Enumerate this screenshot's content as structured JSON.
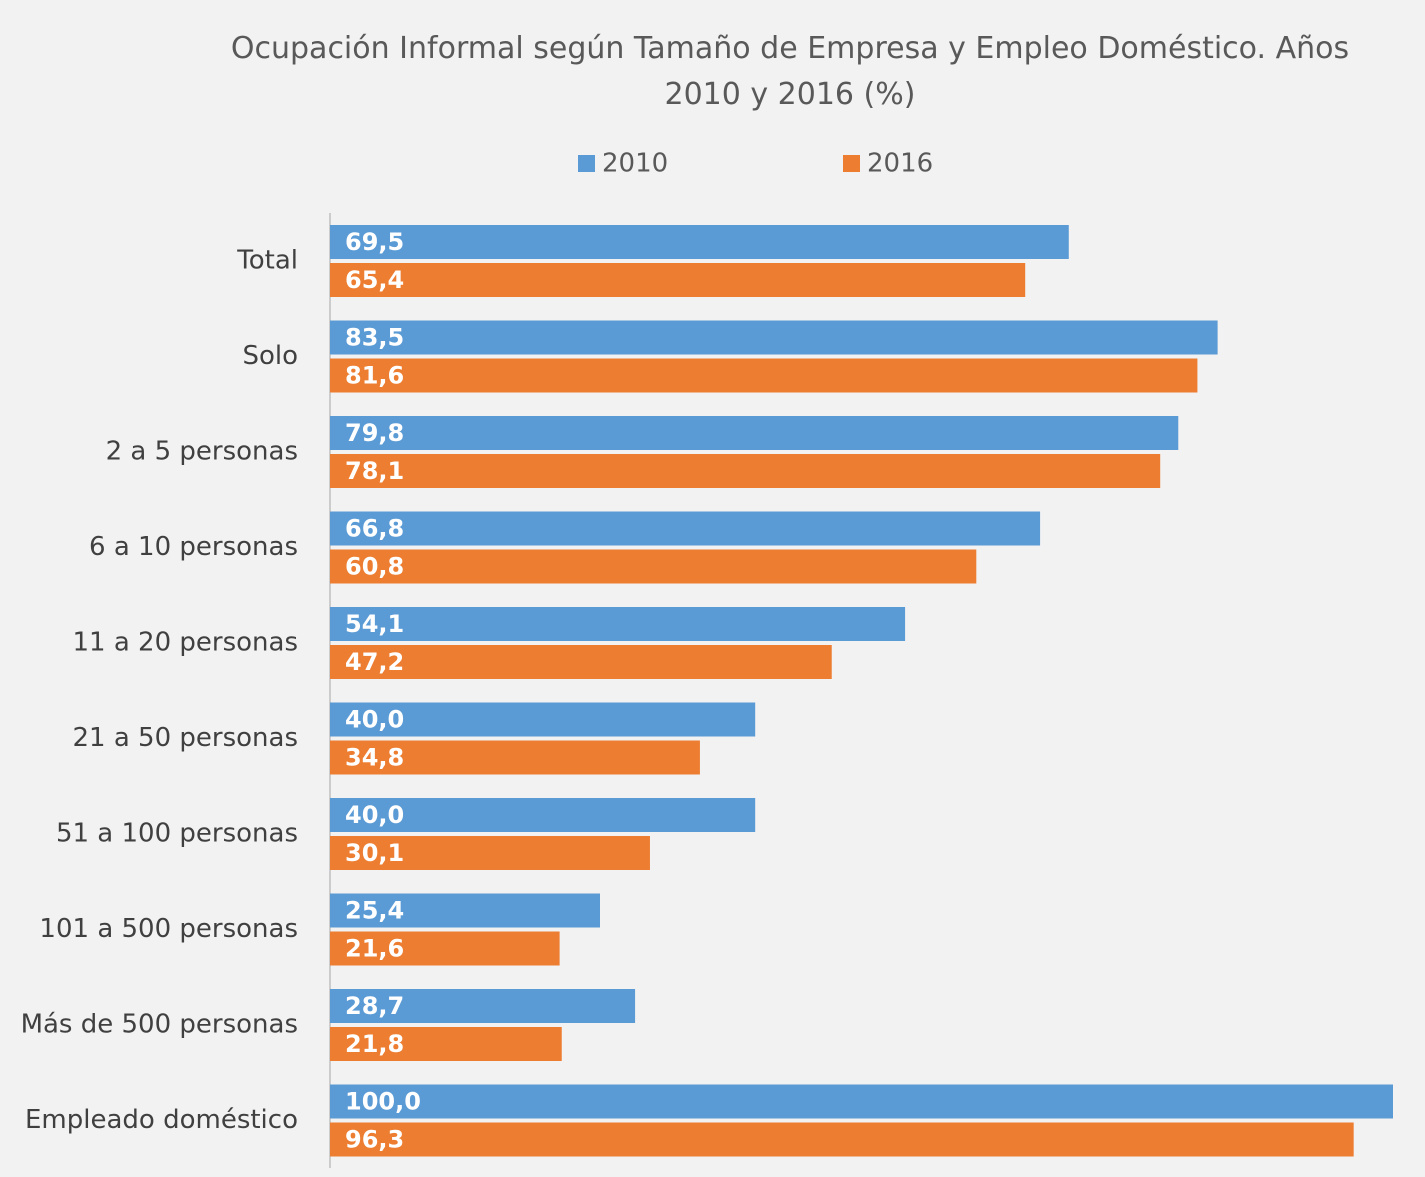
{
  "chart_data": {
    "type": "bar",
    "orientation": "horizontal",
    "title": "Ocupación Informal según Tamaño de Empresa y Empleo Doméstico. Años 2010 y 2016 (%)",
    "categories": [
      "Total",
      "Solo",
      "2 a 5 personas",
      "6 a 10 personas",
      "11 a 20 personas",
      "21 a 50 personas",
      "51 a 100 personas",
      "101 a 500 personas",
      "Más de 500 personas",
      "Empleado doméstico"
    ],
    "series": [
      {
        "name": "2010",
        "color": "#5b9bd5",
        "values": [
          69.5,
          83.5,
          79.8,
          66.8,
          54.1,
          40.0,
          40.0,
          25.4,
          28.7,
          100.0
        ],
        "value_labels": [
          "69,5",
          "83,5",
          "79,8",
          "66,8",
          "54,1",
          "40,0",
          "40,0",
          "25,4",
          "28,7",
          "100,0"
        ]
      },
      {
        "name": "2016",
        "color": "#ed7d31",
        "values": [
          65.4,
          81.6,
          78.1,
          60.8,
          47.2,
          34.8,
          30.1,
          21.6,
          21.8,
          96.3
        ],
        "value_labels": [
          "65,4",
          "81,6",
          "78,1",
          "60,8",
          "47,2",
          "34,8",
          "30,1",
          "21,6",
          "21,8",
          "96,3"
        ]
      }
    ],
    "xlim": [
      0,
      100
    ],
    "legend": "top"
  }
}
